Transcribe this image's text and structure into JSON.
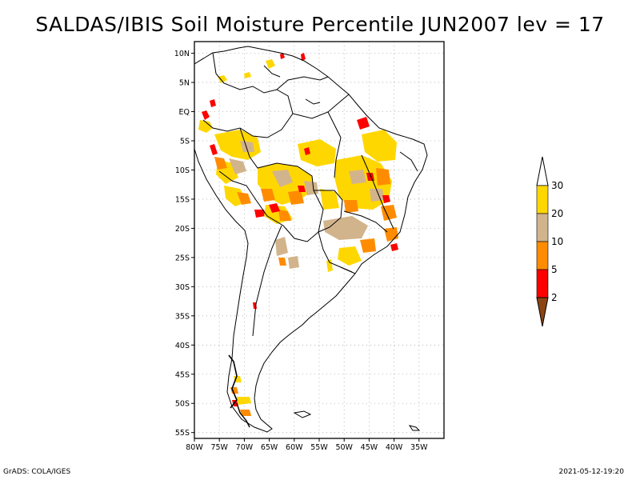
{
  "title": "SALDAS/IBIS Soil Moisture Percentile JUN2007 lev = 17",
  "footer_left": "GrADS: COLA/IGES",
  "footer_right": "2021-05-12-19:20",
  "map": {
    "lon_range": [
      -80,
      -30
    ],
    "lat_range": [
      -56,
      12
    ],
    "lat_ticks": [
      {
        "value": 10,
        "label": "10N"
      },
      {
        "value": 5,
        "label": "5N"
      },
      {
        "value": 0,
        "label": "EQ"
      },
      {
        "value": -5,
        "label": "5S"
      },
      {
        "value": -10,
        "label": "10S"
      },
      {
        "value": -15,
        "label": "15S"
      },
      {
        "value": -20,
        "label": "20S"
      },
      {
        "value": -25,
        "label": "25S"
      },
      {
        "value": -30,
        "label": "30S"
      },
      {
        "value": -35,
        "label": "35S"
      },
      {
        "value": -40,
        "label": "40S"
      },
      {
        "value": -45,
        "label": "45S"
      },
      {
        "value": -50,
        "label": "50S"
      },
      {
        "value": -55,
        "label": "55S"
      }
    ],
    "lon_ticks": [
      {
        "value": -80,
        "label": "80W"
      },
      {
        "value": -75,
        "label": "75W"
      },
      {
        "value": -70,
        "label": "70W"
      },
      {
        "value": -65,
        "label": "65W"
      },
      {
        "value": -60,
        "label": "60W"
      },
      {
        "value": -55,
        "label": "55W"
      },
      {
        "value": -50,
        "label": "50W"
      },
      {
        "value": -45,
        "label": "45W"
      },
      {
        "value": -40,
        "label": "40W"
      },
      {
        "value": -35,
        "label": "35W"
      }
    ],
    "grid": "dotted",
    "colors": {
      "frame": "#000000",
      "coast": "#000000",
      "grid": "#aaaaaa"
    }
  },
  "colorbar": {
    "placement": "right",
    "levels": [
      {
        "label": "2",
        "color": "#8b4513"
      },
      {
        "label": "5",
        "color": "#ff0000"
      },
      {
        "label": "10",
        "color": "#ff8c00"
      },
      {
        "label": "20",
        "color": "#d2b48c"
      },
      {
        "label": "30",
        "color": "#ffd700"
      }
    ],
    "top_color": "#ffffff"
  }
}
